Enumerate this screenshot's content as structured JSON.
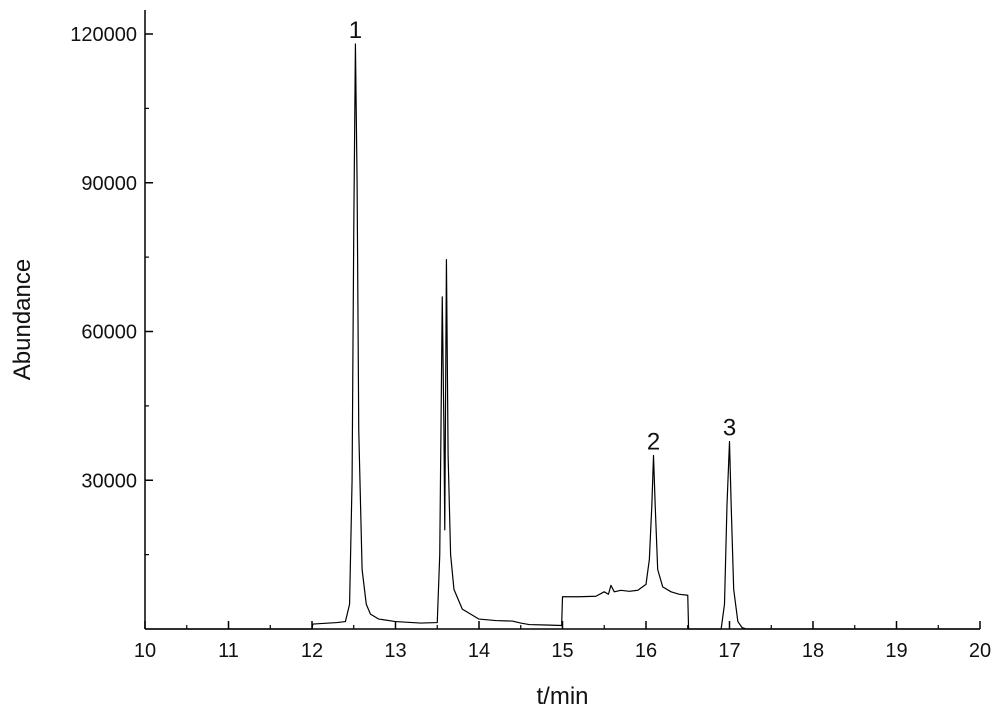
{
  "chart_data": {
    "type": "line",
    "title": "",
    "xlabel": "t/min",
    "ylabel": "Abundance",
    "xlim": [
      10,
      20
    ],
    "ylim": [
      0,
      120000
    ],
    "grid": false,
    "legend": "none",
    "x_ticks": [
      10,
      11,
      12,
      13,
      14,
      15,
      16,
      17,
      18,
      19,
      20
    ],
    "y_ticks": [
      30000,
      60000,
      90000,
      120000
    ],
    "series": [
      {
        "line_color": "#000000",
        "points": [
          [
            10.0,
            0
          ],
          [
            12.0,
            0
          ],
          [
            12.01,
            1000
          ],
          [
            12.3,
            1300
          ],
          [
            12.4,
            1500
          ],
          [
            12.45,
            5000
          ],
          [
            12.48,
            30000
          ],
          [
            12.5,
            80000
          ],
          [
            12.52,
            118000
          ],
          [
            12.54,
            90000
          ],
          [
            12.56,
            40000
          ],
          [
            12.6,
            12000
          ],
          [
            12.65,
            5000
          ],
          [
            12.7,
            3000
          ],
          [
            12.8,
            2000
          ],
          [
            13.0,
            1500
          ],
          [
            13.3,
            1200
          ],
          [
            13.5,
            1300
          ],
          [
            13.53,
            15000
          ],
          [
            13.56,
            67000
          ],
          [
            13.58,
            40000
          ],
          [
            13.59,
            20000
          ],
          [
            13.61,
            74500
          ],
          [
            13.63,
            35000
          ],
          [
            13.66,
            15000
          ],
          [
            13.7,
            8000
          ],
          [
            13.8,
            4000
          ],
          [
            13.9,
            3000
          ],
          [
            14.0,
            2000
          ],
          [
            14.2,
            1700
          ],
          [
            14.4,
            1600
          ],
          [
            14.5,
            1200
          ],
          [
            14.6,
            900
          ],
          [
            14.8,
            800
          ],
          [
            14.99,
            700
          ],
          [
            15.0,
            6500
          ],
          [
            15.2,
            6500
          ],
          [
            15.4,
            6600
          ],
          [
            15.5,
            7500
          ],
          [
            15.55,
            7000
          ],
          [
            15.58,
            8800
          ],
          [
            15.62,
            7500
          ],
          [
            15.7,
            7800
          ],
          [
            15.8,
            7600
          ],
          [
            15.9,
            7800
          ],
          [
            16.0,
            9000
          ],
          [
            16.04,
            14000
          ],
          [
            16.07,
            25000
          ],
          [
            16.09,
            35000
          ],
          [
            16.11,
            25000
          ],
          [
            16.14,
            12000
          ],
          [
            16.2,
            8500
          ],
          [
            16.3,
            7500
          ],
          [
            16.4,
            7000
          ],
          [
            16.5,
            6800
          ],
          [
            16.51,
            0
          ],
          [
            16.9,
            0
          ],
          [
            16.94,
            5000
          ],
          [
            16.97,
            25000
          ],
          [
            17.0,
            37800
          ],
          [
            17.02,
            25000
          ],
          [
            17.05,
            8000
          ],
          [
            17.1,
            1500
          ],
          [
            17.15,
            300
          ],
          [
            17.2,
            0
          ],
          [
            20.0,
            0
          ]
        ]
      }
    ],
    "annotations": [
      {
        "text": "1",
        "x": 12.52,
        "y": 118000
      },
      {
        "text": "2",
        "x": 16.09,
        "y": 35000
      },
      {
        "text": "3",
        "x": 17.0,
        "y": 37800
      }
    ]
  }
}
